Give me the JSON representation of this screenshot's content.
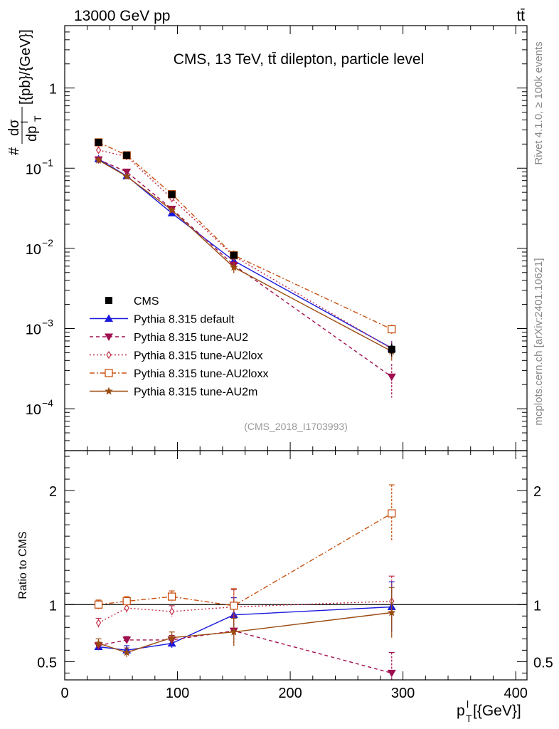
{
  "header": {
    "left_label": "13000 GeV pp",
    "right_label": "tt̄"
  },
  "side_labels": {
    "rivet": "Rivet 4.1.0, ≥ 100k events",
    "source": "mcplots.cern.ch [arXiv:2401.10621]"
  },
  "chart_data": {
    "type": "line",
    "title": "CMS, 13 TeV, tt̄ dilepton, particle level",
    "analysis_tag": "(CMS_2018_I1703993)",
    "xlabel": "p_T^l [{GeV}]",
    "xlabel_main": "p",
    "xlabel_sup": "l",
    "xlabel_sub": "T",
    "xlabel_unit": "[{GeV}]",
    "ylabel_top": "# dσ/dp_T^l [{pb}/{GeV}]",
    "ylabel_hash": "#",
    "ylabel_num": "dσ",
    "ylabel_den": "dp",
    "ylabel_den_sup": "l",
    "ylabel_den_sub": "T",
    "ylabel_unit": "[{pb}/{GeV}]",
    "ylabel_ratio": "Ratio to CMS",
    "xlim": [
      0,
      410
    ],
    "ylim_log": [
      3e-05,
      6
    ],
    "ratio_ylim": [
      0.34,
      2.35
    ],
    "x_ticks": [
      0,
      100,
      200,
      300,
      400
    ],
    "x_tick_labels": [
      "0",
      "100",
      "200",
      "300",
      "400"
    ],
    "y_ticks": [
      {
        "value": 0.0001,
        "mant": "10",
        "exp": "−4"
      },
      {
        "value": 0.001,
        "mant": "10",
        "exp": "−3"
      },
      {
        "value": 0.01,
        "mant": "10",
        "exp": "−2"
      },
      {
        "value": 0.1,
        "mant": "10",
        "exp": "−1"
      },
      {
        "value": 1,
        "mant": "1",
        "exp": ""
      }
    ],
    "ratio_ticks": [
      0.5,
      1,
      2
    ],
    "ratio_tick_labels": [
      "0.5",
      "1",
      "2"
    ],
    "x": [
      30,
      55,
      95,
      150,
      290
    ],
    "x_edges": [
      20,
      40,
      70,
      120,
      180,
      400
    ],
    "data": {
      "name": "CMS",
      "color": "#000000",
      "values": [
        0.21,
        0.145,
        0.047,
        0.0082,
        0.00055
      ],
      "rel_err": [
        0.05,
        0.04,
        0.05,
        0.06,
        0.18
      ]
    },
    "series": [
      {
        "name": "Pythia 8.315 default",
        "color": "#1a1adc",
        "dash": "",
        "marker": "triangle-up",
        "values": [
          0.13,
          0.08,
          0.0275,
          0.007,
          0.00057
        ],
        "ratio": [
          0.63,
          0.6,
          0.66,
          0.91,
          0.98
        ],
        "ratio_err": [
          0.03,
          0.04,
          0.04,
          0.15,
          0.22
        ]
      },
      {
        "name": "Pythia 8.315 tune-AU2",
        "color": "#a00f50",
        "dash": "5,4",
        "marker": "triangle-down",
        "values": [
          0.128,
          0.09,
          0.031,
          0.0062,
          0.00025
        ],
        "ratio": [
          0.64,
          0.69,
          0.69,
          0.77,
          0.4
        ],
        "ratio_err": [
          0.03,
          0.03,
          0.04,
          0.13,
          0.18
        ]
      },
      {
        "name": "Pythia 8.315 tune-AU2lox",
        "color": "#c0304a",
        "dash": "2,3",
        "marker": "diamond-open",
        "values": [
          0.168,
          0.14,
          0.042,
          0.008,
          0.00056
        ],
        "ratio": [
          0.84,
          0.97,
          0.94,
          0.98,
          1.03
        ],
        "ratio_err": [
          0.04,
          0.04,
          0.05,
          0.15,
          0.22
        ]
      },
      {
        "name": "Pythia 8.315 tune-AU2loxx",
        "color": "#c85010",
        "dash": "7,3,2,3",
        "marker": "square-open",
        "values": [
          0.21,
          0.145,
          0.0475,
          0.0082,
          0.00098
        ],
        "ratio": [
          1.0,
          1.03,
          1.07,
          0.99,
          1.8
        ],
        "ratio_err": [
          0.04,
          0.04,
          0.05,
          0.15,
          0.25
        ]
      },
      {
        "name": "Pythia 8.315 tune-AU2m",
        "color": "#9a4a10",
        "dash": "",
        "marker": "star",
        "values": [
          0.126,
          0.079,
          0.03,
          0.0058,
          0.00052
        ],
        "ratio": [
          0.66,
          0.58,
          0.71,
          0.76,
          0.93
        ],
        "ratio_err": [
          0.04,
          0.04,
          0.05,
          0.12,
          0.22
        ]
      }
    ]
  }
}
